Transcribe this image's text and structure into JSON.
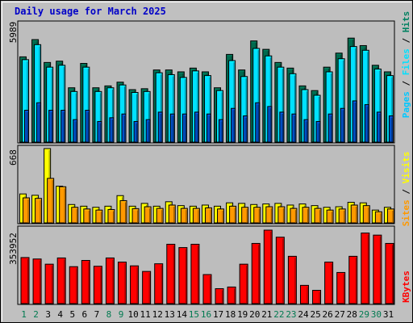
{
  "chart_data": [
    {
      "type": "bar",
      "title": "Daily usage for March 2025",
      "categories": [
        "1",
        "2",
        "3",
        "4",
        "5",
        "6",
        "7",
        "8",
        "9",
        "10",
        "11",
        "12",
        "13",
        "14",
        "15",
        "16",
        "17",
        "18",
        "19",
        "20",
        "21",
        "22",
        "23",
        "24",
        "25",
        "26",
        "27",
        "28",
        "29",
        "30",
        "31"
      ],
      "weekend_categories": [
        "1",
        "2",
        "8",
        "9",
        "15",
        "16",
        "22",
        "23",
        "29",
        "30"
      ],
      "ymax_label": "5989",
      "ylim": [
        0,
        5989
      ],
      "series": [
        {
          "name": "Hits",
          "color": "#006a4e",
          "values": [
            4550,
            5470,
            4250,
            4320,
            2900,
            4200,
            2900,
            3000,
            3200,
            2800,
            2850,
            3850,
            3850,
            3750,
            3950,
            3750,
            2900,
            4680,
            3850,
            5400,
            4950,
            4250,
            3950,
            3000,
            2750,
            4000,
            4750,
            5550,
            5150,
            4100,
            3750
          ]
        },
        {
          "name": "Files",
          "color": "#00e1ff",
          "values": [
            4400,
            5200,
            4000,
            4100,
            2700,
            4000,
            2700,
            2900,
            3050,
            2650,
            2700,
            3700,
            3600,
            3450,
            3800,
            3550,
            2750,
            4350,
            3500,
            5000,
            4600,
            4000,
            3650,
            2800,
            2500,
            3750,
            4450,
            5100,
            4900,
            3900,
            3550
          ]
        },
        {
          "name": "Pages",
          "color": "#0050c8",
          "values": [
            1700,
            2100,
            1700,
            1700,
            1200,
            1700,
            1100,
            1300,
            1500,
            1100,
            1200,
            1600,
            1500,
            1500,
            1600,
            1500,
            1200,
            1800,
            1400,
            2100,
            1900,
            1600,
            1500,
            1200,
            1100,
            1500,
            1800,
            2200,
            2000,
            1600,
            1400
          ]
        }
      ]
    },
    {
      "type": "bar",
      "ymax_label": "668",
      "ylim": [
        0,
        668
      ],
      "series": [
        {
          "name": "Visits",
          "color": "#ffff00",
          "values": [
            260,
            248,
            668,
            330,
            165,
            150,
            140,
            150,
            245,
            150,
            175,
            150,
            190,
            155,
            150,
            160,
            150,
            180,
            175,
            165,
            170,
            175,
            160,
            170,
            155,
            140,
            145,
            185,
            180,
            115,
            140
          ]
        },
        {
          "name": "Sites",
          "color": "#ff9900",
          "values": [
            225,
            220,
            400,
            325,
            140,
            125,
            115,
            120,
            200,
            128,
            145,
            130,
            160,
            130,
            130,
            135,
            125,
            150,
            140,
            140,
            145,
            145,
            130,
            140,
            130,
            115,
            125,
            160,
            155,
            100,
            125
          ]
        }
      ]
    },
    {
      "type": "bar",
      "ymax_label": "353952",
      "ylim": [
        0,
        353952
      ],
      "series": [
        {
          "name": "KBytes",
          "color": "#ff0000",
          "values": [
            222000,
            215000,
            190000,
            220000,
            178000,
            208000,
            180000,
            220000,
            200000,
            182000,
            155000,
            192000,
            286000,
            270000,
            286000,
            140000,
            72000,
            80000,
            190000,
            290000,
            353952,
            320000,
            228000,
            88000,
            64000,
            200000,
            150000,
            228000,
            340000,
            330000,
            290000
          ]
        }
      ]
    }
  ]
}
